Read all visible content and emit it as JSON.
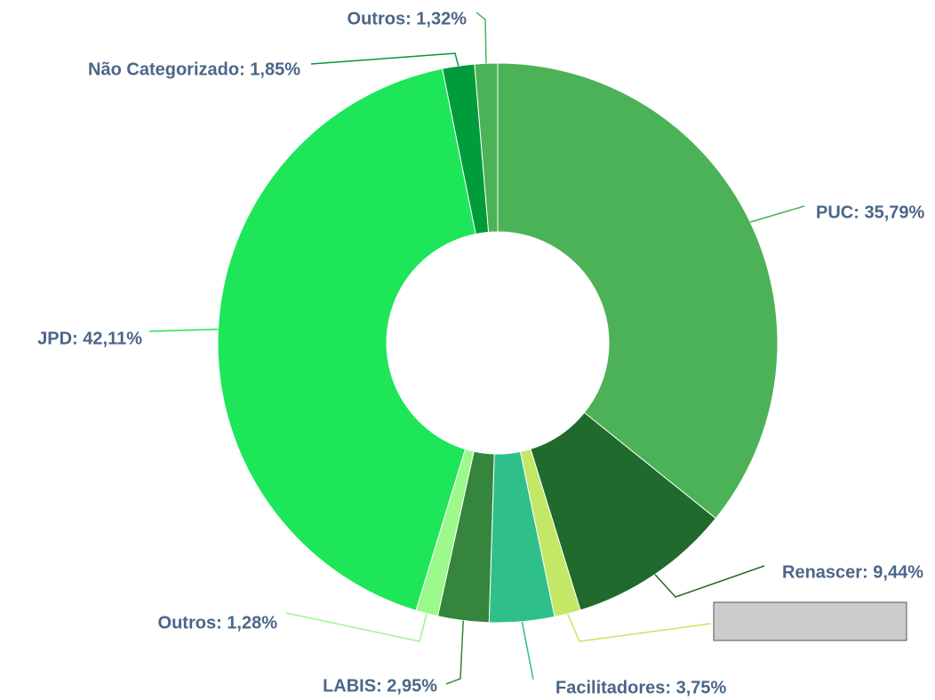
{
  "chart_data": {
    "type": "pie",
    "labels": [
      "PUC: 35,79%",
      "Renascer: 9,44%",
      null,
      "Facilitadores: 3,75%",
      "LABIS: 2,95%",
      "Outros: 1,28%",
      "JPD: 42,11%",
      "Não Categorizado: 1,85%",
      "Outros: 1,32%"
    ],
    "values": [
      35.79,
      9.44,
      1.51,
      3.75,
      2.95,
      1.28,
      42.11,
      1.85,
      1.32
    ],
    "colors": [
      "#4cb257",
      "#1f6a2c",
      "#c2e866",
      "#2fbf8b",
      "#35853d",
      "#9bfa8b",
      "#1de659",
      "#009b3a",
      "#4cb257"
    ]
  }
}
